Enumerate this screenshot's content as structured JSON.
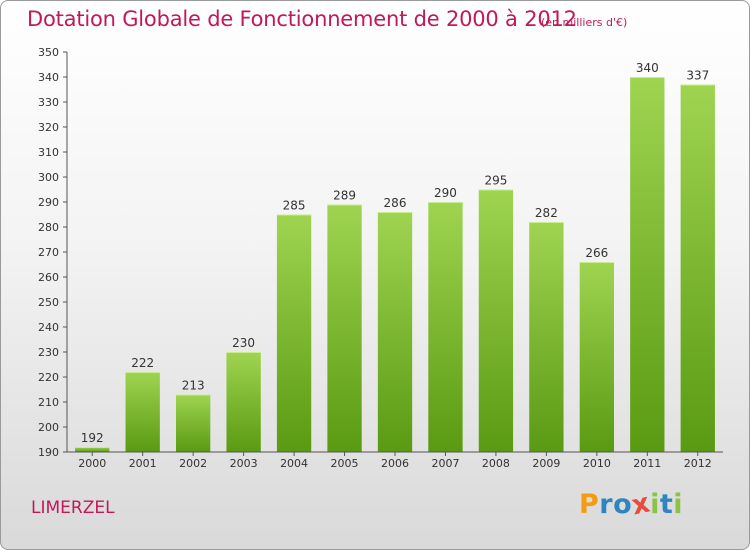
{
  "title": "Dotation Globale de Fonctionnement de 2000 à 2012",
  "subtitle": "(en milliers d'€)",
  "commune": "LIMERZEL",
  "logo": {
    "letters": [
      "P",
      "r",
      "o",
      "x",
      "i",
      "t",
      "i"
    ],
    "colors": [
      "#f39c12",
      "#2e86c1",
      "#2e86c1",
      "#e74c3c",
      "#8bc34a",
      "#2e86c1",
      "#8bc34a"
    ]
  },
  "colors": {
    "bar_light": "#9fd451",
    "bar_dark": "#5a9a12",
    "accent": "#c2185b"
  },
  "chart_data": {
    "type": "bar",
    "categories": [
      "2000",
      "2001",
      "2002",
      "2003",
      "2004",
      "2005",
      "2006",
      "2007",
      "2008",
      "2009",
      "2010",
      "2011",
      "2012"
    ],
    "values": [
      192,
      222,
      213,
      230,
      285,
      289,
      286,
      290,
      295,
      282,
      266,
      340,
      337
    ],
    "title": "Dotation Globale de Fonctionnement de 2000 à 2012",
    "ylabel": "",
    "xlabel": "",
    "ylim": [
      190,
      350
    ],
    "ytick_step": 10,
    "grid": false
  }
}
